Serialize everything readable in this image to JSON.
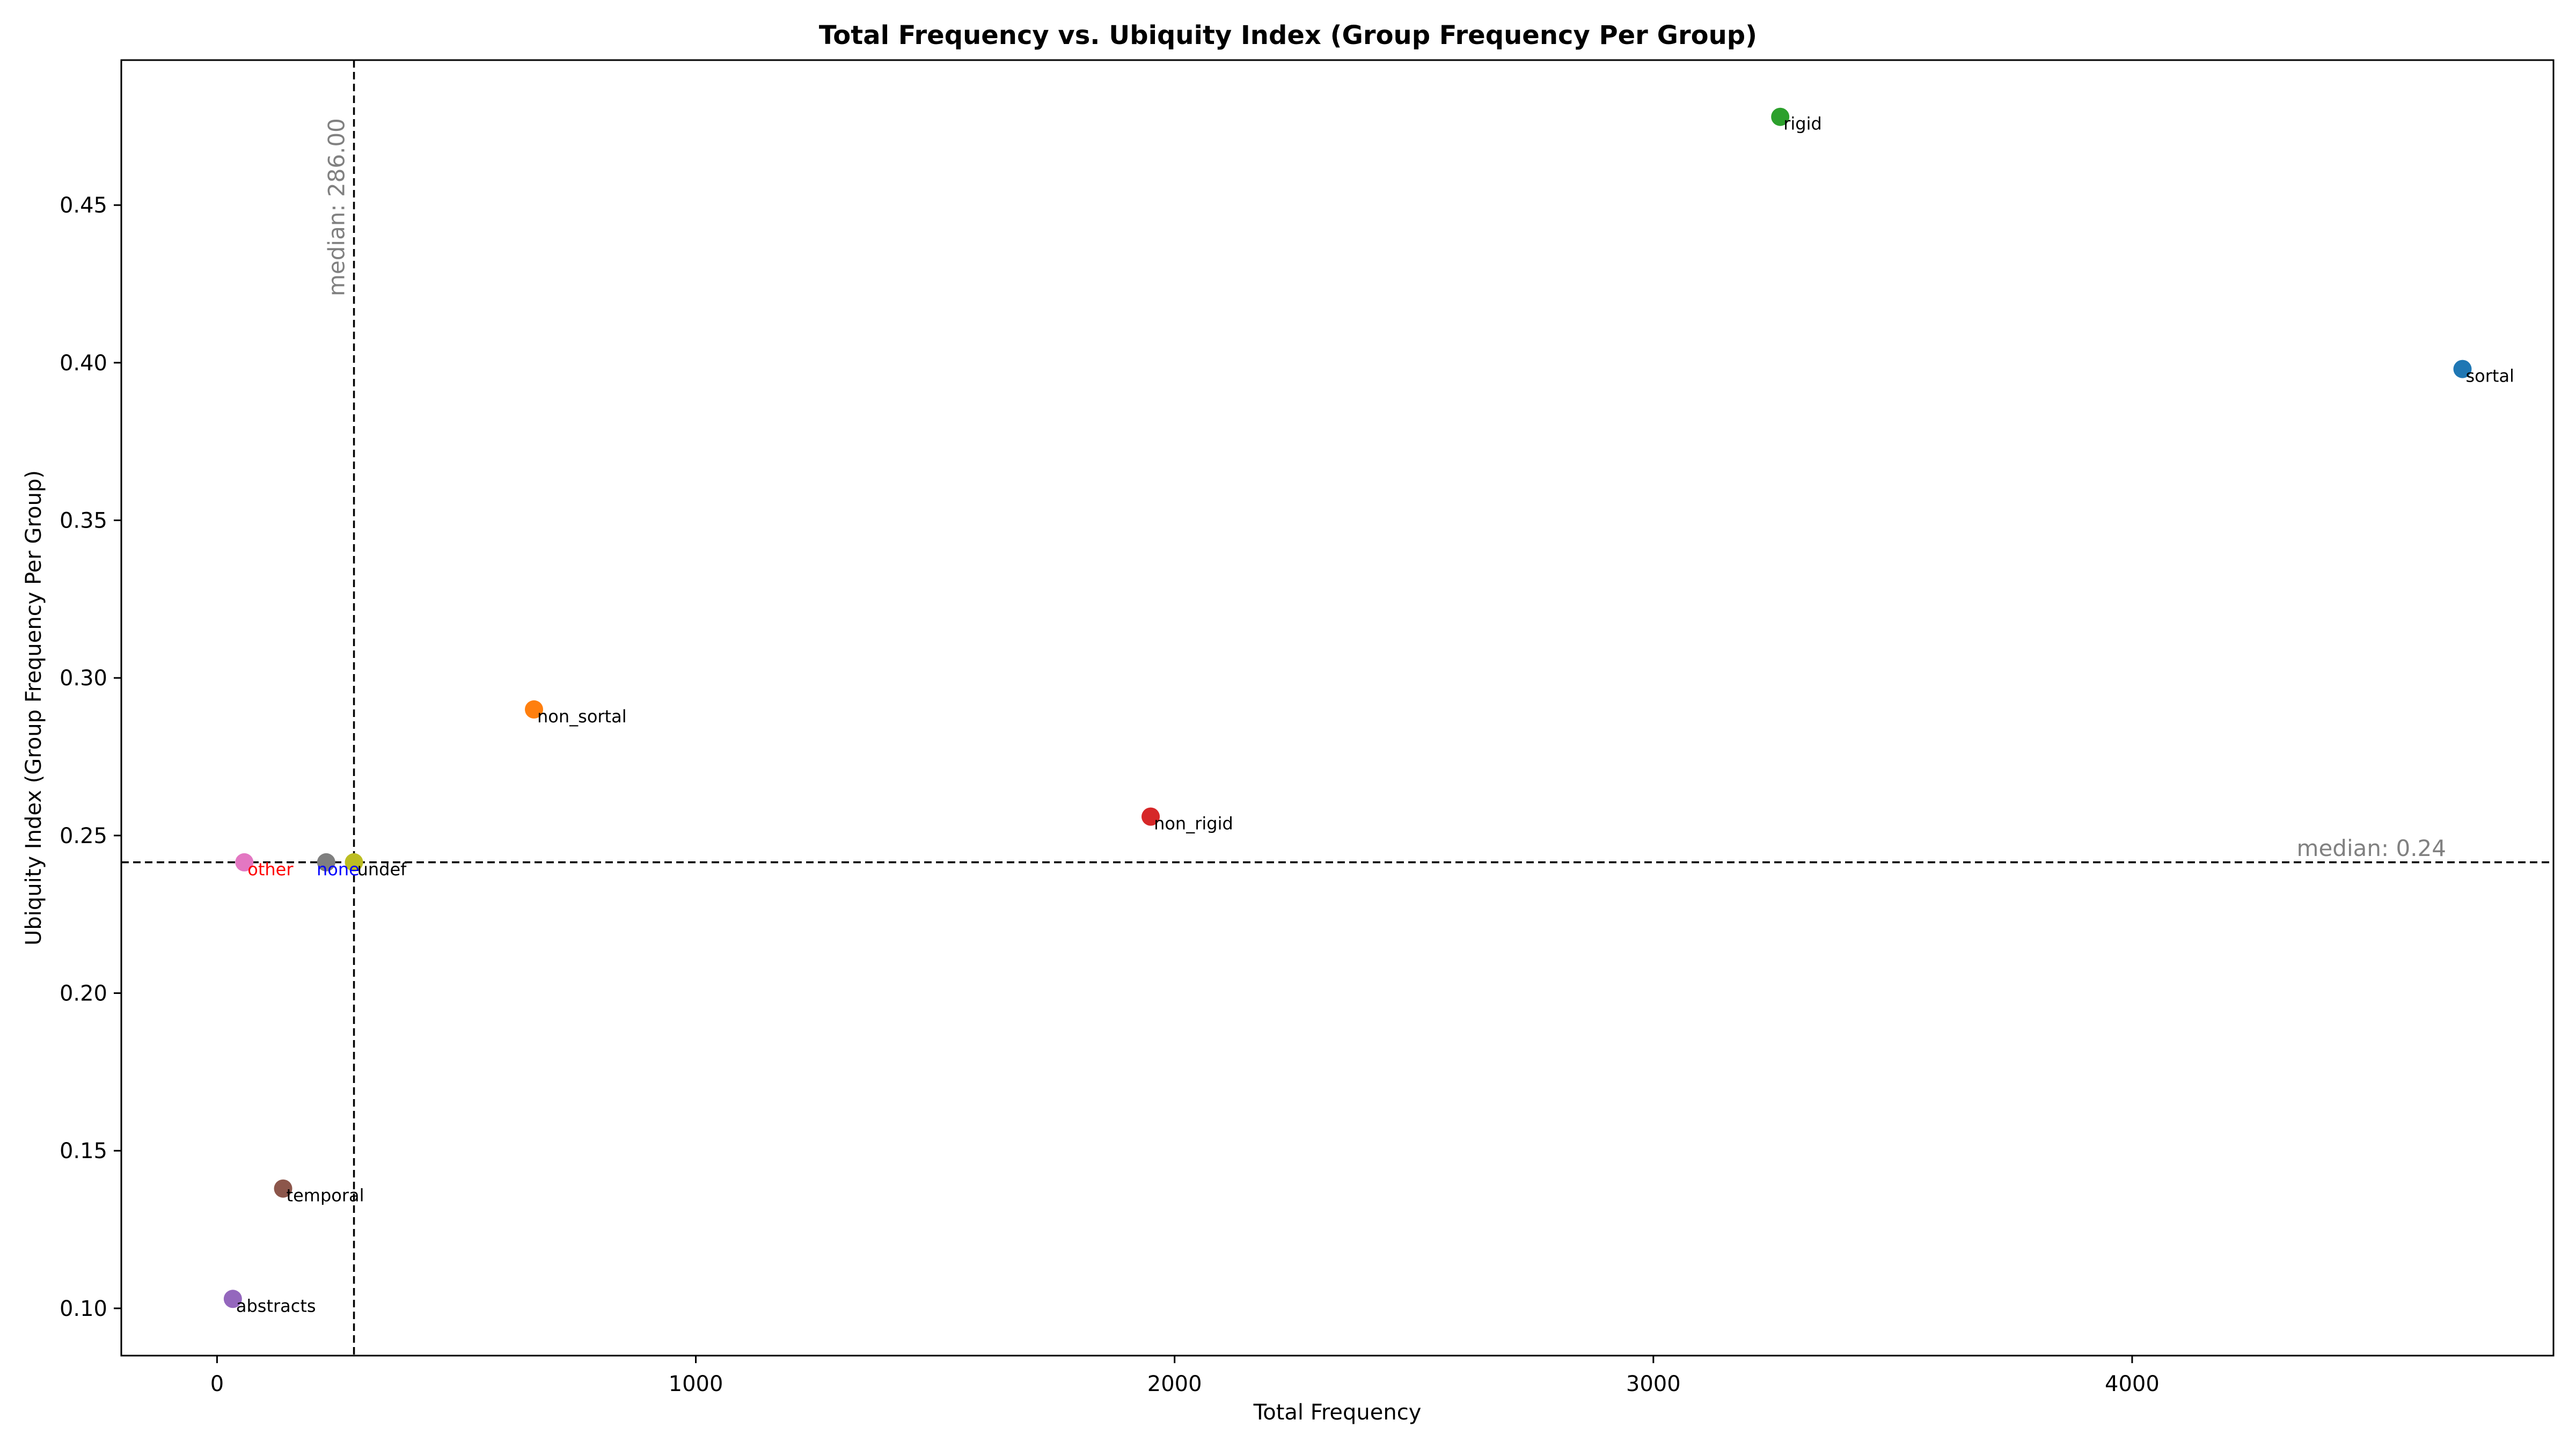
{
  "chart_data": {
    "type": "scatter",
    "title": "Total Frequency vs. Ubiquity Index (Group Frequency Per Group)",
    "xlabel": "Total Frequency",
    "ylabel": "Ubiquity Index (Group Frequency Per Group)",
    "xlim": [
      -200,
      4880
    ],
    "ylim": [
      0.085,
      0.496
    ],
    "xticks": [
      0,
      1000,
      2000,
      3000,
      4000
    ],
    "xtick_labels": [
      "0",
      "1000",
      "2000",
      "3000",
      "4000"
    ],
    "yticks": [
      0.1,
      0.15,
      0.2,
      0.25,
      0.3,
      0.35,
      0.4,
      0.45
    ],
    "ytick_labels": [
      "0.10",
      "0.15",
      "0.20",
      "0.25",
      "0.30",
      "0.35",
      "0.40",
      "0.45"
    ],
    "grid": false,
    "points": [
      {
        "label": "sortal",
        "x": 4690,
        "y": 0.398,
        "color": "#1f77b4",
        "label_color": "#000000"
      },
      {
        "label": "rigid",
        "x": 3265,
        "y": 0.478,
        "color": "#2ca02c",
        "label_color": "#000000"
      },
      {
        "label": "non_sortal",
        "x": 662,
        "y": 0.29,
        "color": "#ff7f0e",
        "label_color": "#000000"
      },
      {
        "label": "non_rigid",
        "x": 1950,
        "y": 0.256,
        "color": "#d62728",
        "label_color": "#000000"
      },
      {
        "label": "other",
        "x": 57,
        "y": 0.2415,
        "color": "#e377c2",
        "label_color": "#ff0000"
      },
      {
        "label": "none",
        "x": 228,
        "y": 0.2415,
        "color": "#7f7f7f",
        "label_color": "#0000ff"
      },
      {
        "label": "undef",
        "x": 286,
        "y": 0.2415,
        "color": "#bcbd22",
        "label_color": "#000000"
      },
      {
        "label": "temporal",
        "x": 138,
        "y": 0.138,
        "color": "#8c564b",
        "label_color": "#000000"
      },
      {
        "label": "abstracts",
        "x": 33,
        "y": 0.103,
        "color": "#9467bd",
        "label_color": "#000000"
      }
    ],
    "median_x": {
      "value": 286,
      "label": "median: 286.00"
    },
    "median_y": {
      "value": 0.2415,
      "label": "median: 0.24"
    }
  }
}
